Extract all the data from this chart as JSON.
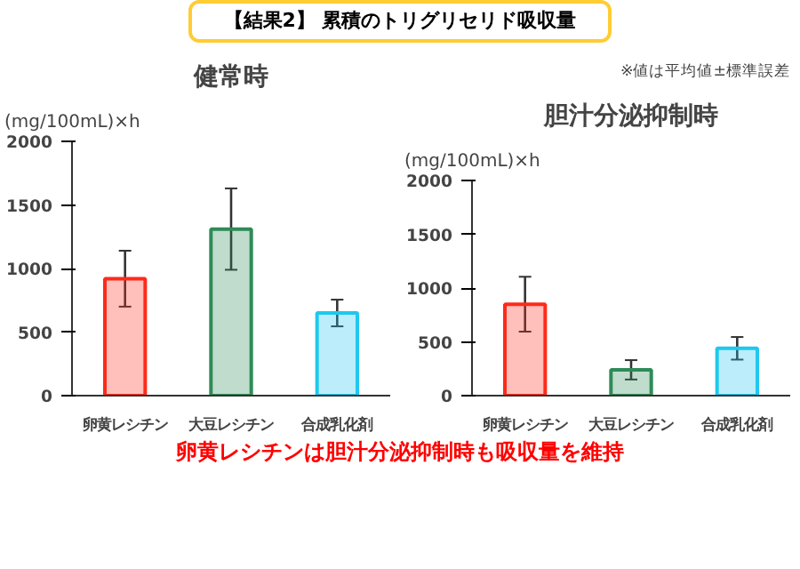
{
  "chart_data": [
    {
      "type": "bar",
      "title": "健常時",
      "ylabel": "(mg/100mL)×h",
      "annotations": [
        "【結果2】 累積のトリグリセリド吸収量"
      ],
      "categories": [
        "卵黄レシチン",
        "大豆レシチン",
        "合成乳化剤"
      ],
      "values": [
        920,
        1310,
        650
      ],
      "errors": [
        220,
        320,
        105
      ],
      "colors": [
        "#ff2a1a",
        "#2e8b57",
        "#1ec8ee"
      ],
      "ylim": [
        0,
        2000
      ],
      "yticks": [
        0,
        500,
        1000,
        1500,
        2000
      ]
    },
    {
      "type": "bar",
      "title": "胆汁分泌抑制時",
      "ylabel": "(mg/100mL)×h",
      "annotations": [
        "※値は平均値±標準誤差",
        "卵黄レシチンは胆汁分泌抑制時も吸収量を維持"
      ],
      "categories": [
        "卵黄レシチン",
        "大豆レシチン",
        "合成乳化剤"
      ],
      "values": [
        850,
        240,
        440
      ],
      "errors": [
        255,
        90,
        105
      ],
      "colors": [
        "#ff2a1a",
        "#2e8b57",
        "#1ec8ee"
      ],
      "ylim": [
        0,
        2000
      ],
      "yticks": [
        0,
        500,
        1000,
        1500,
        2000
      ]
    }
  ]
}
